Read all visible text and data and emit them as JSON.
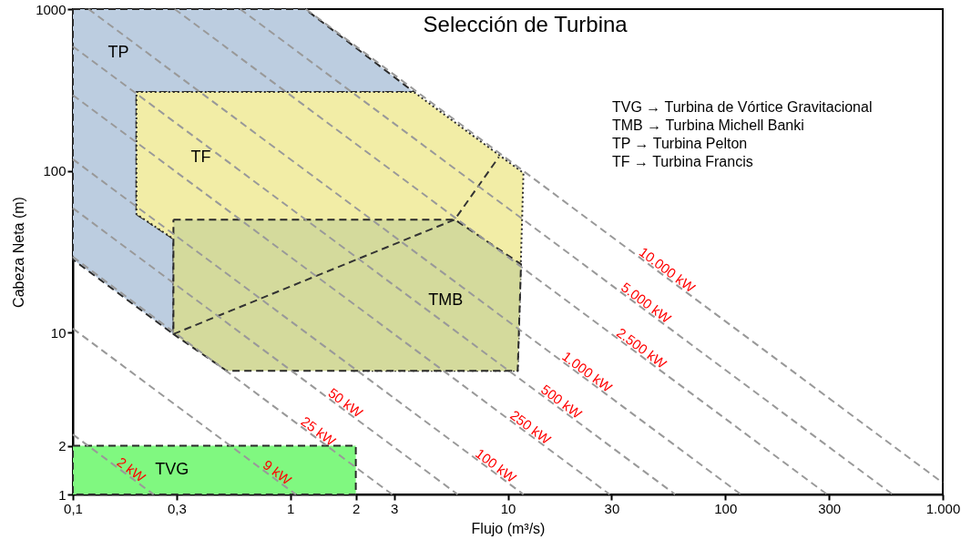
{
  "chart_data": {
    "type": "line",
    "title": "Selección de Turbina",
    "xlabel": "Flujo (m³/s)",
    "ylabel": "Cabeza Neta  (m)",
    "log": "xy",
    "grid": false,
    "xlim": [
      0.1,
      1000
    ],
    "ylim": [
      1,
      1000
    ],
    "xticks": [
      {
        "value": 0.1,
        "label": "0,1"
      },
      {
        "value": 0.3,
        "label": "0,3"
      },
      1,
      2,
      3,
      10,
      30,
      100,
      300,
      {
        "value": 1000,
        "label": "1.000"
      }
    ],
    "yticks": [
      1,
      2,
      10,
      100,
      1000
    ],
    "series": [
      {
        "type": "area",
        "name": "TP",
        "color": "#bccde0",
        "line_style": "dashed",
        "x": [
          0.1,
          1.17,
          3.7,
          0.196,
          0.196,
          0.29,
          0.29,
          0.1
        ],
        "values": [
          1000,
          1000,
          307,
          307,
          54,
          38,
          9.8,
          28.3
        ]
      },
      {
        "type": "area",
        "name": "TF",
        "color": "#f2eda6",
        "line_style": "dotted",
        "x": [
          0.196,
          3.7,
          11.8,
          11.1,
          1.95,
          0.29,
          0.196
        ],
        "values": [
          307,
          307,
          97,
          5.8,
          5.8,
          38,
          54
        ]
      },
      {
        "type": "area",
        "name": "TMB",
        "color": "#d4da9c",
        "line_style": "dashed",
        "x": [
          0.29,
          5.7,
          11.5,
          11.1,
          0.51,
          0.29
        ],
        "values": [
          50,
          50,
          26.5,
          5.8,
          5.8,
          9.8
        ]
      },
      {
        "color": "#333333",
        "line_style": "dashed",
        "x": [
          0.29,
          5.7,
          9.1
        ],
        "values": [
          9.8,
          50,
          122
        ]
      },
      {
        "type": "area",
        "name": "TVG",
        "color": "#80f880",
        "line_style": "dashed",
        "x": [
          0.1,
          2,
          2,
          0.1
        ],
        "values": [
          2,
          2,
          1,
          1
        ]
      },
      {
        "name": "2 kW",
        "color": "#999999",
        "line_style": "dashed",
        "x": [
          0.1,
          0.178,
          0.235
        ],
        "values": [
          2.35,
          1.32,
          1
        ]
      },
      {
        "name": "9 kW",
        "color": "#999999",
        "line_style": "dashed",
        "x": [
          0.1,
          0.834,
          1.06
        ],
        "values": [
          10.6,
          1.27,
          1
        ]
      },
      {
        "name": "25 kW",
        "color": "#999999",
        "line_style": "dashed",
        "x": [
          0.1,
          1.29,
          2.94
        ],
        "values": [
          29.4,
          2.28,
          1
        ]
      },
      {
        "name": "50 kW",
        "color": "#999999",
        "line_style": "dashed",
        "x": [
          0.1,
          1.72,
          5.88
        ],
        "values": [
          58.8,
          3.42,
          1
        ]
      },
      {
        "name": "100 kW",
        "color": "#999999",
        "line_style": "dashed",
        "x": [
          0.1,
          8.45,
          11.8
        ],
        "values": [
          118,
          1.4,
          1
        ]
      },
      {
        "name": "250 kW",
        "color": "#999999",
        "line_style": "dashed",
        "x": [
          0.1,
          12.2,
          29.4
        ],
        "values": [
          294,
          2.41,
          1
        ]
      },
      {
        "name": "500 kW",
        "color": "#999999",
        "line_style": "dashed",
        "x": [
          0.1,
          16.9,
          58.8
        ],
        "values": [
          588,
          3.48,
          1
        ]
      },
      {
        "name": "1.000 kW",
        "color": "#999999",
        "line_style": "dashed",
        "x": [
          0.118,
          22.2,
          118
        ],
        "values": [
          1000,
          5.32,
          1
        ]
      },
      {
        "name": "2.500 kW",
        "color": "#999999",
        "line_style": "dashed",
        "x": [
          0.294,
          39.5,
          294
        ],
        "values": [
          1000,
          7.44,
          1
        ]
      },
      {
        "name": "5.000 kW",
        "color": "#999999",
        "line_style": "dashed",
        "x": [
          0.588,
          41.5,
          588
        ],
        "values": [
          1000,
          14.2,
          1
        ]
      },
      {
        "name": "10.000 kW",
        "color": "#999999",
        "line_style": "dashed",
        "x": [
          1.18,
          51.8,
          1000
        ],
        "values": [
          1000,
          22.7,
          1.18
        ]
      }
    ],
    "annotations": [
      "TVG → Turbina de Vórtice Gravitacional",
      "TMB → Turbina Michell Banki",
      "TP    → Turbina Pelton",
      "TF    → Turbina Francis"
    ]
  }
}
